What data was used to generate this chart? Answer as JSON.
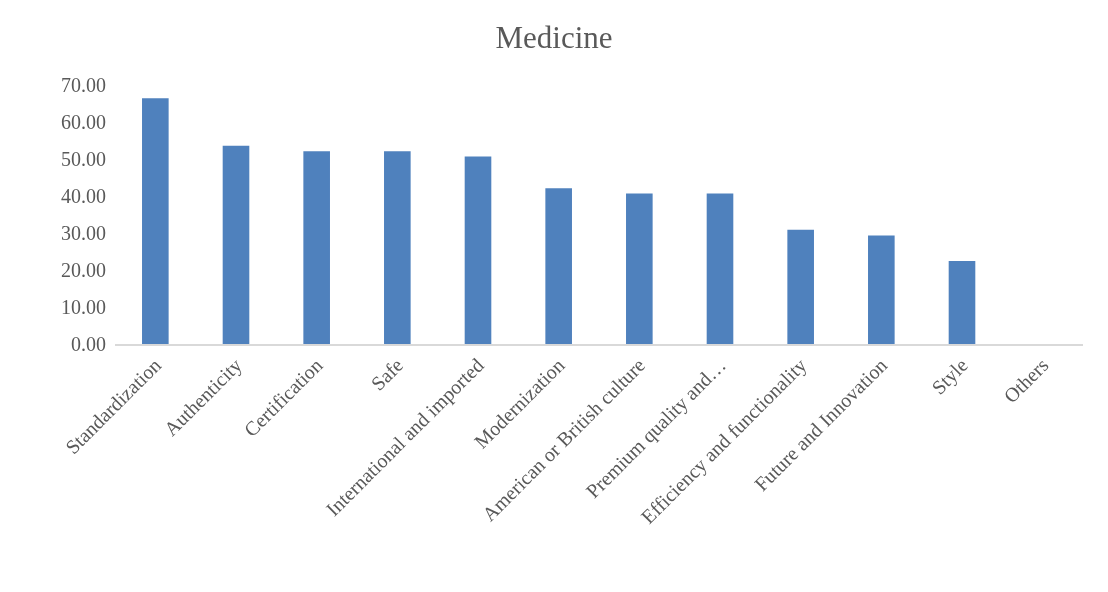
{
  "chart_data": {
    "type": "bar",
    "title": "Medicine",
    "categories": [
      "Standardization",
      "Authenticity",
      "Certification",
      "Safe",
      "International and imported",
      "Modernization",
      "American or British culture",
      "Premium quality and…",
      "Efficiency and functionality",
      "Future and Innovation",
      "Style",
      "Others"
    ],
    "values": [
      66.4,
      53.6,
      52.1,
      52.1,
      50.7,
      42.1,
      40.7,
      40.7,
      30.9,
      29.3,
      22.4,
      0
    ],
    "color": "#4f81bd",
    "ylim": [
      0,
      70
    ],
    "yticks": [
      {
        "value": 0,
        "label": "0.00"
      },
      {
        "value": 10,
        "label": "10.00"
      },
      {
        "value": 20,
        "label": "20.00"
      },
      {
        "value": 30,
        "label": "30.00"
      },
      {
        "value": 40,
        "label": "40.00"
      },
      {
        "value": 50,
        "label": "50.00"
      },
      {
        "value": 60,
        "label": "60.00"
      },
      {
        "value": 70,
        "label": "70.00"
      }
    ],
    "grid": false
  }
}
